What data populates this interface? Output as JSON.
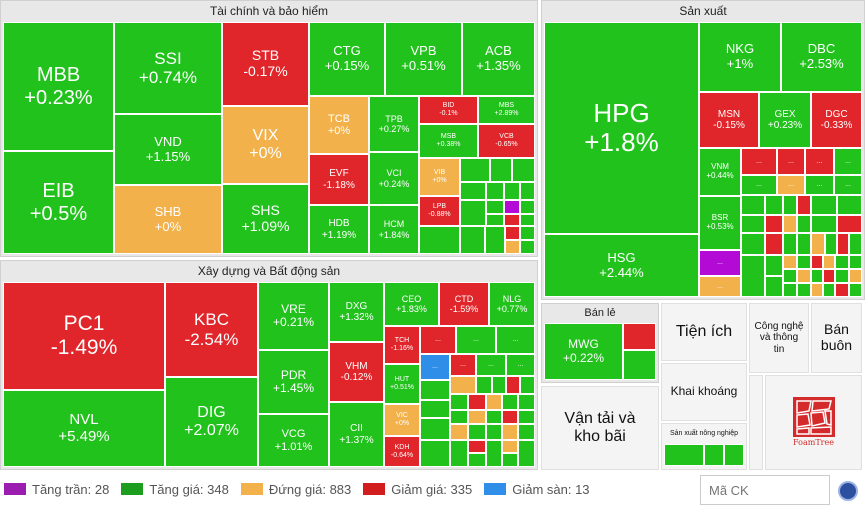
{
  "chart_data": {
    "type": "treemap",
    "sectors": [
      {
        "name": "Tài chính và bảo hiểm",
        "stocks": [
          {
            "ticker": "MBB",
            "change": "+0.23%",
            "status": "up"
          },
          {
            "ticker": "EIB",
            "change": "+0.5%",
            "status": "up"
          },
          {
            "ticker": "SSI",
            "change": "+0.74%",
            "status": "up"
          },
          {
            "ticker": "VND",
            "change": "+1.15%",
            "status": "up"
          },
          {
            "ticker": "SHB",
            "change": "+0%",
            "status": "flat"
          },
          {
            "ticker": "STB",
            "change": "-0.17%",
            "status": "down"
          },
          {
            "ticker": "VIX",
            "change": "+0%",
            "status": "flat"
          },
          {
            "ticker": "SHS",
            "change": "+1.09%",
            "status": "up"
          },
          {
            "ticker": "CTG",
            "change": "+0.15%",
            "status": "up"
          },
          {
            "ticker": "VPB",
            "change": "+0.51%",
            "status": "up"
          },
          {
            "ticker": "ACB",
            "change": "+1.35%",
            "status": "up"
          },
          {
            "ticker": "TCB",
            "change": "+0%",
            "status": "flat"
          },
          {
            "ticker": "TPB",
            "change": "+0.27%",
            "status": "up"
          },
          {
            "ticker": "BID",
            "change": "-0.1%",
            "status": "down"
          },
          {
            "ticker": "MBS",
            "change": "+2.89%",
            "status": "up"
          },
          {
            "ticker": "MSB",
            "change": "+0.38%",
            "status": "up"
          },
          {
            "ticker": "VCB",
            "change": "-0.65%",
            "status": "down"
          },
          {
            "ticker": "EVF",
            "change": "-1.18%",
            "status": "down"
          },
          {
            "ticker": "VCI",
            "change": "+0.24%",
            "status": "up"
          },
          {
            "ticker": "VIB",
            "change": "+0%",
            "status": "flat"
          },
          {
            "ticker": "LPB",
            "change": "-0.88%",
            "status": "down"
          },
          {
            "ticker": "HDB",
            "change": "+1.19%",
            "status": "up"
          },
          {
            "ticker": "HCM",
            "change": "+1.84%",
            "status": "up"
          }
        ]
      },
      {
        "name": "Sản xuất",
        "stocks": [
          {
            "ticker": "HPG",
            "change": "+1.8%",
            "status": "up"
          },
          {
            "ticker": "HSG",
            "change": "+2.44%",
            "status": "up"
          },
          {
            "ticker": "NKG",
            "change": "+1%",
            "status": "up"
          },
          {
            "ticker": "DBC",
            "change": "+2.53%",
            "status": "up"
          },
          {
            "ticker": "MSN",
            "change": "-0.15%",
            "status": "down"
          },
          {
            "ticker": "GEX",
            "change": "+0.23%",
            "status": "up"
          },
          {
            "ticker": "DGC",
            "change": "-0.33%",
            "status": "down"
          },
          {
            "ticker": "VNM",
            "change": "+0.44%",
            "status": "up"
          },
          {
            "ticker": "BSR",
            "change": "+0.53%",
            "status": "up"
          }
        ]
      },
      {
        "name": "Xây dựng và Bất động sản",
        "stocks": [
          {
            "ticker": "PC1",
            "change": "-1.49%",
            "status": "down"
          },
          {
            "ticker": "NVL",
            "change": "+5.49%",
            "status": "up"
          },
          {
            "ticker": "KBC",
            "change": "-2.54%",
            "status": "down"
          },
          {
            "ticker": "DIG",
            "change": "+2.07%",
            "status": "up"
          },
          {
            "ticker": "VRE",
            "change": "+0.21%",
            "status": "up"
          },
          {
            "ticker": "PDR",
            "change": "+1.45%",
            "status": "up"
          },
          {
            "ticker": "VCG",
            "change": "+1.01%",
            "status": "up"
          },
          {
            "ticker": "DXG",
            "change": "+1.32%",
            "status": "up"
          },
          {
            "ticker": "VHM",
            "change": "-0.12%",
            "status": "down"
          },
          {
            "ticker": "CII",
            "change": "+1.37%",
            "status": "up"
          },
          {
            "ticker": "CEO",
            "change": "+1.83%",
            "status": "up"
          },
          {
            "ticker": "CTD",
            "change": "-1.59%",
            "status": "down"
          },
          {
            "ticker": "NLG",
            "change": "+0.77%",
            "status": "up"
          },
          {
            "ticker": "TCH",
            "change": "-1.16%",
            "status": "down"
          },
          {
            "ticker": "HUT",
            "change": "+0.51%",
            "status": "up"
          },
          {
            "ticker": "VIC",
            "change": "+0%",
            "status": "flat"
          },
          {
            "ticker": "KDH",
            "change": "-0.64%",
            "status": "down"
          }
        ]
      },
      {
        "name": "Bán lẻ",
        "stocks": [
          {
            "ticker": "MWG",
            "change": "+0.22%",
            "status": "up"
          }
        ]
      }
    ],
    "other_sectors": [
      "Tiện ích",
      "Công nghệ và thông tin",
      "Bán buôn",
      "Khai khoáng",
      "Vận tải và kho bãi",
      "Sản xuất nông nghiệp"
    ],
    "legend": [
      {
        "label": "Tăng trần: 28",
        "color": "#9a1db0"
      },
      {
        "label": "Tăng giá: 348",
        "color": "#1e9e1e"
      },
      {
        "label": "Đứng giá: 883",
        "color": "#f2b14b"
      },
      {
        "label": "Giảm giá: 335",
        "color": "#d11d1d"
      },
      {
        "label": "Giảm sàn: 13",
        "color": "#2f8ee8"
      }
    ],
    "more_label": "..."
  },
  "search": {
    "placeholder": "Mã CK"
  },
  "logo": {
    "text": "FoamTree"
  }
}
